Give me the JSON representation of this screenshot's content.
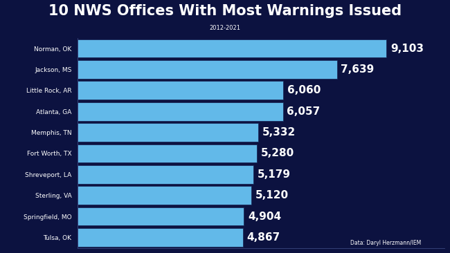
{
  "chart_data": {
    "type": "bar",
    "orientation": "horizontal",
    "title": "10 NWS Offices With Most Warnings Issued",
    "subtitle": "2012-2021",
    "annotations": [
      "Data: Daryl Herzmann/IEM"
    ],
    "categories": [
      "Norman, OK",
      "Jackson, MS",
      "Little Rock, AR",
      "Atlanta, GA",
      "Memphis, TN",
      "Fort Worth, TX",
      "Shreveport, LA",
      "Sterling, VA",
      "Springfield, MO",
      "Tulsa, OK"
    ],
    "values": [
      9103,
      7639,
      6060,
      6057,
      5332,
      5280,
      5179,
      5120,
      4904,
      4867
    ],
    "value_labels": [
      "9,103",
      "7,639",
      "6,060",
      "6,057",
      "5,332",
      "5,280",
      "5,179",
      "5,120",
      "4,904",
      "4,867"
    ],
    "data_labels": true,
    "color": "#62b9e9",
    "xlim": [
      0,
      10800
    ],
    "tick_labels": "y",
    "grid": false
  }
}
